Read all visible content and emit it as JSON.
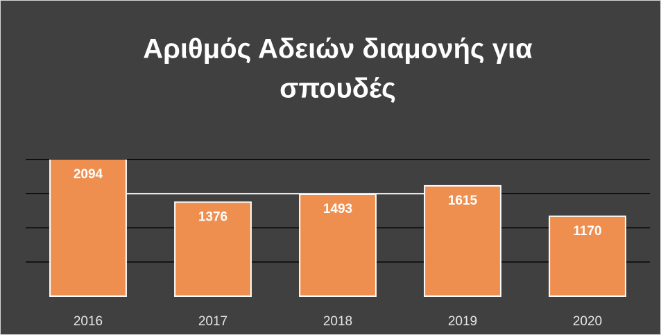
{
  "chart_data": {
    "type": "bar",
    "title": [
      "Αριθμός  Αδειών διαμονής για",
      "σπουδές"
    ],
    "categories": [
      "2016",
      "2017",
      "2018",
      "2019",
      "2020"
    ],
    "values": [
      2094,
      1376,
      1493,
      1615,
      1170
    ],
    "color": "#ef8f4f",
    "ylim": [
      0,
      2000
    ],
    "yticks": [
      500,
      1000,
      1500,
      2000
    ],
    "grid": true
  }
}
